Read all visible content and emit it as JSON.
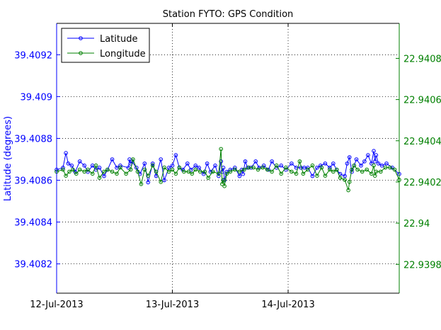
{
  "chart_data": {
    "type": "line",
    "title": "Station FYTO: GPS Condition",
    "ylabel": "Latitude (degrees)",
    "y2label": "",
    "x_ticks": [
      {
        "value": 0,
        "label": "12-Jul-2013"
      },
      {
        "value": 1,
        "label": "13-Jul-2013"
      },
      {
        "value": 2,
        "label": "14-Jul-2013"
      }
    ],
    "xlim": [
      0,
      2.96
    ],
    "ylim": [
      39.40806,
      39.40935
    ],
    "y2lim": [
      22.93966,
      22.94097
    ],
    "y_ticks": [
      "39.4082",
      "39.4084",
      "39.4086",
      "39.4088",
      "39.409",
      "39.4092"
    ],
    "y2_ticks": [
      "22.9398",
      "22.94",
      "22.9402",
      "22.9404",
      "22.9406",
      "22.9408"
    ],
    "grid": true,
    "legend": "top-left",
    "colors": {
      "latitude": "#0000ff",
      "longitude": "#008000",
      "axes": "#000000",
      "grid": "#000000"
    },
    "series": [
      {
        "name": "Latitude",
        "axis": "left",
        "color": "#0000ff",
        "x": [
          0,
          0.055,
          0.08,
          0.1,
          0.13,
          0.16,
          0.2,
          0.24,
          0.27,
          0.31,
          0.34,
          0.37,
          0.41,
          0.44,
          0.48,
          0.52,
          0.55,
          0.62,
          0.63,
          0.64,
          0.65,
          0.69,
          0.72,
          0.76,
          0.79,
          0.83,
          0.86,
          0.9,
          0.93,
          0.97,
          1.0,
          1.03,
          1.06,
          1.09,
          1.13,
          1.16,
          1.2,
          1.23,
          1.27,
          1.3,
          1.33,
          1.37,
          1.4,
          1.42,
          1.43,
          1.44,
          1.45,
          1.47,
          1.5,
          1.54,
          1.58,
          1.6,
          1.61,
          1.63,
          1.65,
          1.68,
          1.72,
          1.75,
          1.79,
          1.83,
          1.86,
          1.9,
          1.94,
          1.98,
          2.03,
          2.07,
          2.11,
          2.14,
          2.17,
          2.21,
          2.25,
          2.28,
          2.32,
          2.36,
          2.39,
          2.42,
          2.45,
          2.49,
          2.51,
          2.53,
          2.55,
          2.57,
          2.59,
          2.63,
          2.66,
          2.69,
          2.72,
          2.74,
          2.75,
          2.76,
          2.78,
          2.81,
          2.85,
          2.9,
          2.96
        ],
        "values": [
          39.40865,
          39.40866,
          39.40873,
          39.40868,
          39.40867,
          39.40864,
          39.40869,
          39.40867,
          39.40864,
          39.40867,
          39.40865,
          39.40866,
          39.40862,
          39.40865,
          39.4087,
          39.40866,
          39.40867,
          39.40866,
          39.4087,
          39.40868,
          39.40869,
          39.40866,
          39.40863,
          39.40868,
          39.40859,
          39.40868,
          39.40862,
          39.4087,
          39.4086,
          39.40866,
          39.40867,
          39.40872,
          39.40866,
          39.40865,
          39.40868,
          39.40865,
          39.40867,
          39.40866,
          39.40863,
          39.40868,
          39.40864,
          39.40867,
          39.40862,
          39.40869,
          39.40864,
          39.40866,
          39.4086,
          39.40864,
          39.40865,
          39.40866,
          39.40862,
          39.40865,
          39.40863,
          39.40869,
          39.40866,
          39.40866,
          39.40869,
          39.40866,
          39.40867,
          39.40865,
          39.40869,
          39.40866,
          39.40867,
          39.40865,
          39.40868,
          39.40866,
          39.40866,
          39.40866,
          39.40866,
          39.40862,
          39.40866,
          39.40867,
          39.40868,
          39.40866,
          39.40868,
          39.40865,
          39.40863,
          39.40862,
          39.40868,
          39.40871,
          39.40864,
          39.40867,
          39.4087,
          39.40867,
          39.40869,
          39.40872,
          39.40868,
          39.40874,
          39.40869,
          39.40872,
          39.40868,
          39.40867,
          39.40868,
          39.40866,
          39.40863
        ]
      },
      {
        "name": "Longitude",
        "axis": "right",
        "color": "#008000",
        "x": [
          0,
          0.055,
          0.08,
          0.11,
          0.14,
          0.17,
          0.2,
          0.24,
          0.27,
          0.31,
          0.34,
          0.37,
          0.41,
          0.44,
          0.48,
          0.52,
          0.55,
          0.6,
          0.64,
          0.66,
          0.7,
          0.73,
          0.76,
          0.79,
          0.83,
          0.86,
          0.9,
          0.93,
          0.97,
          1.0,
          1.03,
          1.06,
          1.1,
          1.14,
          1.17,
          1.2,
          1.24,
          1.28,
          1.31,
          1.35,
          1.4,
          1.42,
          1.43,
          1.44,
          1.45,
          1.47,
          1.5,
          1.54,
          1.58,
          1.62,
          1.66,
          1.7,
          1.74,
          1.78,
          1.82,
          1.86,
          1.9,
          1.94,
          1.98,
          2.03,
          2.07,
          2.1,
          2.13,
          2.17,
          2.21,
          2.25,
          2.29,
          2.32,
          2.36,
          2.39,
          2.42,
          2.45,
          2.49,
          2.52,
          2.53,
          2.55,
          2.57,
          2.6,
          2.64,
          2.68,
          2.72,
          2.74,
          2.75,
          2.76,
          2.8,
          2.84,
          2.88,
          2.92,
          2.96
        ],
        "values": [
          22.94025,
          22.94026,
          22.94023,
          22.94025,
          22.94026,
          22.94024,
          22.94026,
          22.94025,
          22.94026,
          22.94024,
          22.94028,
          22.94022,
          22.94025,
          22.94026,
          22.94025,
          22.94024,
          22.94027,
          22.94024,
          22.94026,
          22.94031,
          22.94025,
          22.94019,
          22.94026,
          22.94023,
          22.94028,
          22.94025,
          22.9402,
          22.94027,
          22.94025,
          22.94026,
          22.94024,
          22.94027,
          22.94025,
          22.94025,
          22.94024,
          22.94026,
          22.94025,
          22.94025,
          22.94022,
          22.94025,
          22.94024,
          22.94036,
          22.94019,
          22.94021,
          22.94018,
          22.94024,
          22.94025,
          22.94026,
          22.94025,
          22.94026,
          22.94027,
          22.94027,
          22.94026,
          22.94027,
          22.94026,
          22.94025,
          22.94028,
          22.94024,
          22.94027,
          22.94025,
          22.94024,
          22.9403,
          22.94024,
          22.94026,
          22.94028,
          22.94023,
          22.94027,
          22.94023,
          22.94026,
          22.94025,
          22.94026,
          22.94022,
          22.94021,
          22.94016,
          22.9402,
          22.94026,
          22.94028,
          22.94026,
          22.94025,
          22.94026,
          22.94024,
          22.94028,
          22.94023,
          22.94025,
          22.94025,
          22.94027,
          22.94027,
          22.94026,
          22.94021
        ]
      }
    ]
  }
}
